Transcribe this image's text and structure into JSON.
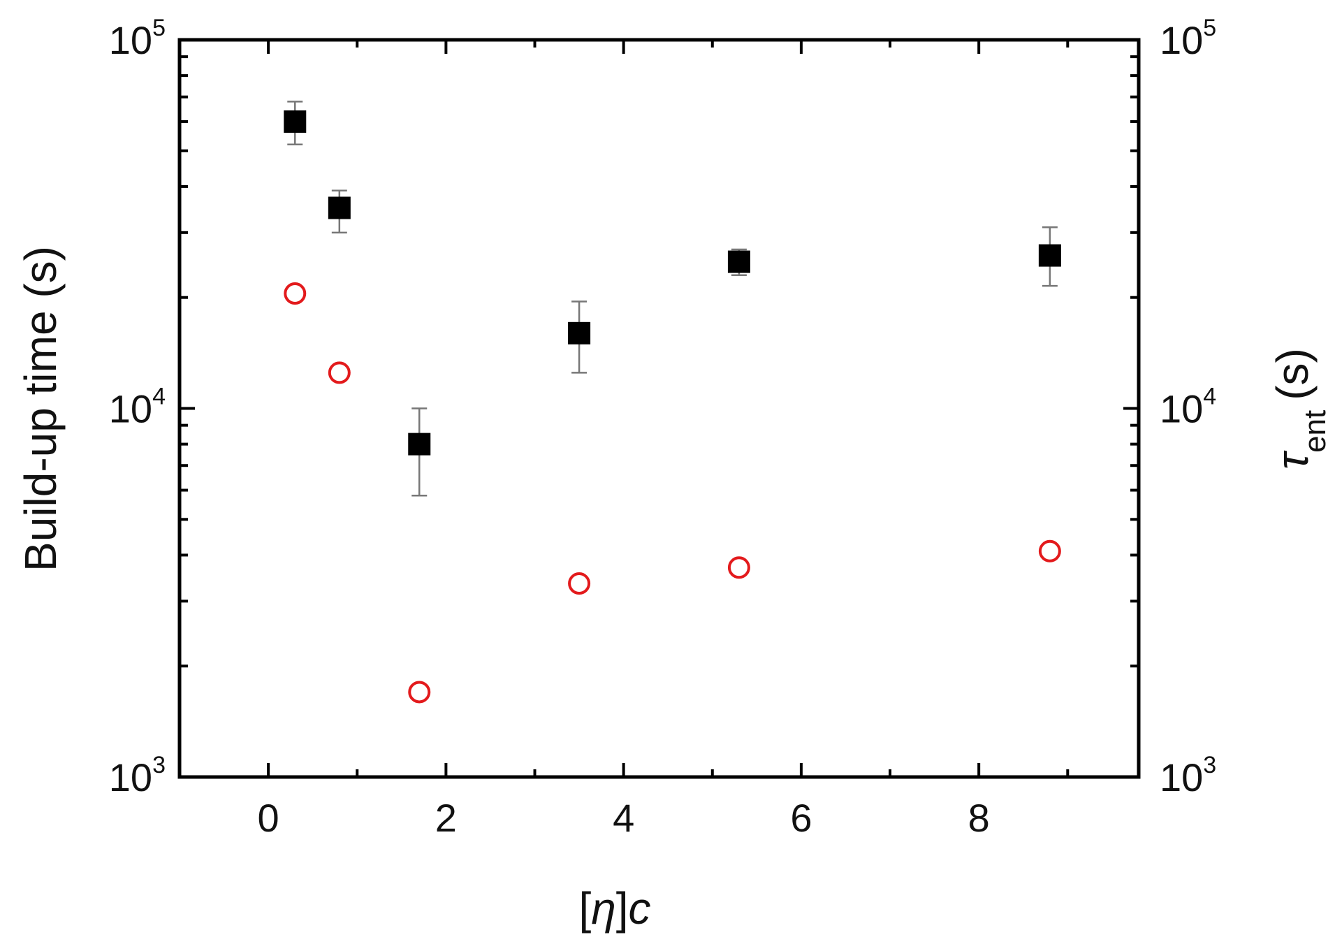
{
  "chart_data": {
    "type": "scatter",
    "title": "",
    "xlabel": {
      "prefix": "[",
      "symbol": "η",
      "suffix": "]",
      "var": "c"
    },
    "ylabel_left": "Build-up time (s)",
    "ylabel_right": {
      "symbol": "τ",
      "subscript": "ent",
      "unit": "(s)"
    },
    "xlim": [
      -1,
      9.8
    ],
    "ylim": [
      1000,
      100000
    ],
    "yscale": "log",
    "grid": false,
    "x_ticks": [
      "0",
      "2",
      "4",
      "6",
      "8"
    ],
    "x_tick_values": [
      0,
      2,
      4,
      6,
      8
    ],
    "y_ticks": [
      {
        "value": 1000,
        "base": "10",
        "exp": "3"
      },
      {
        "value": 10000,
        "base": "10",
        "exp": "4"
      },
      {
        "value": 100000,
        "base": "10",
        "exp": "5"
      }
    ],
    "series": [
      {
        "axis": "left",
        "marker": "filled-square",
        "color": "#000000",
        "points": [
          {
            "x": 0.3,
            "y": 60000,
            "err_low": 52000,
            "err_high": 68000
          },
          {
            "x": 0.8,
            "y": 35000,
            "err_low": 30000,
            "err_high": 39000
          },
          {
            "x": 1.7,
            "y": 8000,
            "err_low": 5800,
            "err_high": 10000
          },
          {
            "x": 3.5,
            "y": 16000,
            "err_low": 12500,
            "err_high": 19500
          },
          {
            "x": 5.3,
            "y": 25000,
            "err_low": 23000,
            "err_high": 27000
          },
          {
            "x": 8.8,
            "y": 26000,
            "err_low": 21500,
            "err_high": 31000
          }
        ]
      },
      {
        "axis": "right",
        "marker": "open-circle",
        "color": "#e31a1c",
        "points": [
          {
            "x": 0.3,
            "y": 20500
          },
          {
            "x": 0.8,
            "y": 12500
          },
          {
            "x": 1.7,
            "y": 1700
          },
          {
            "x": 3.5,
            "y": 3350
          },
          {
            "x": 5.3,
            "y": 3700
          },
          {
            "x": 8.8,
            "y": 4100
          }
        ]
      }
    ]
  }
}
